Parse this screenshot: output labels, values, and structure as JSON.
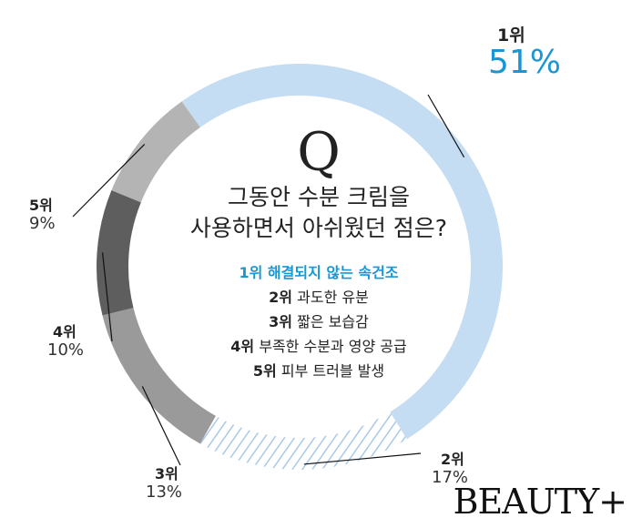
{
  "chart_data": {
    "type": "donut",
    "title_mark": "Q",
    "question_lines": [
      "그동안 수분 크림을",
      "사용하면서 아쉬웠던 점은?"
    ],
    "options": [
      {
        "rank": "1위",
        "text": "해결되지 않는 속건조",
        "highlight": true
      },
      {
        "rank": "2위",
        "text": "과도한 유분",
        "highlight": false
      },
      {
        "rank": "3위",
        "text": "짧은 보습감",
        "highlight": false
      },
      {
        "rank": "4위",
        "text": "부족한 수분과 영양 공급",
        "highlight": false
      },
      {
        "rank": "5위",
        "text": "피부 트러블 발생",
        "highlight": false
      }
    ],
    "slices": [
      {
        "rank": "1위",
        "value": 51,
        "label": "51%",
        "color": "#c5ddf2",
        "pattern": "solid"
      },
      {
        "rank": "2위",
        "value": 17,
        "label": "17%",
        "color": "#c5ddf2",
        "pattern": "hatched"
      },
      {
        "rank": "3위",
        "value": 13,
        "label": "13%",
        "color": "#9a9a9a",
        "pattern": "solid"
      },
      {
        "rank": "4위",
        "value": 10,
        "label": "10%",
        "color": "#5e5e5e",
        "pattern": "solid"
      },
      {
        "rank": "5위",
        "value": 9,
        "label": "9%",
        "color": "#b4b4b4",
        "pattern": "solid"
      }
    ]
  },
  "brand": "BEAUTY+"
}
